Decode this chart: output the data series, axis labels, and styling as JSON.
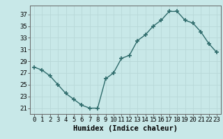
{
  "x": [
    0,
    1,
    2,
    3,
    4,
    5,
    6,
    7,
    8,
    9,
    10,
    11,
    12,
    13,
    14,
    15,
    16,
    17,
    18,
    19,
    20,
    21,
    22,
    23
  ],
  "y": [
    28,
    27.5,
    26.5,
    25,
    23.5,
    22.5,
    21.5,
    21,
    21,
    26,
    27,
    29.5,
    30,
    32.5,
    33.5,
    35,
    36,
    37.5,
    37.5,
    36,
    35.5,
    34,
    32,
    30.5
  ],
  "line_color": "#2e6b6b",
  "marker": "+",
  "bg_color": "#c8e8e8",
  "grid_color": "#b8d8d8",
  "xlabel": "Humidex (Indice chaleur)",
  "ylabel_ticks": [
    21,
    23,
    25,
    27,
    29,
    31,
    33,
    35,
    37
  ],
  "ylim": [
    20.0,
    38.5
  ],
  "xlim": [
    -0.5,
    23.5
  ],
  "tick_fontsize": 6.5,
  "label_fontsize": 7.5
}
